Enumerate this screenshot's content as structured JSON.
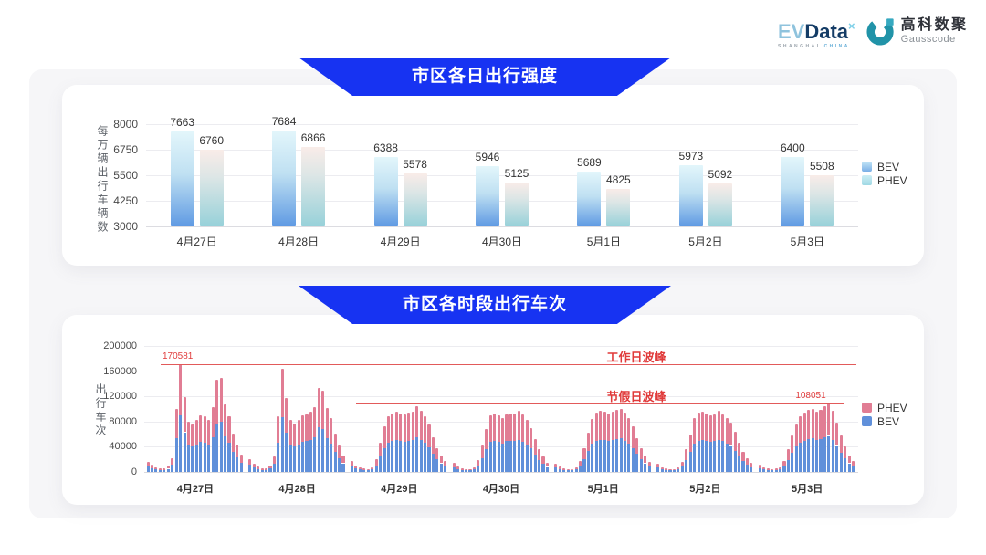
{
  "header": {
    "logo": {
      "ev": "EV",
      "data": "Data",
      "sup": "×",
      "location_left": "SHANGHAI",
      "location_right": "CHINA",
      "partner_cn": "高科数聚",
      "partner_en": "Gausscode"
    }
  },
  "colors": {
    "banner_blue": "#1733f2",
    "annotation_red": "#e03b3b",
    "annotation_line_red": "#e25a5a",
    "bev_stack_blue": "#6090da",
    "phev_stack_pink": "#e17d94",
    "bev_gradient_top": "#e3f6fb",
    "bev_gradient_bottom": "#5f9ae3",
    "phev_gradient_top": "#f9ece8",
    "phev_gradient_bottom": "#97d1d9",
    "grid": "#ececf0",
    "axis_text": "#4a4a4a"
  },
  "chart_data": [
    {
      "type": "bar",
      "title": "市区各日出行强度",
      "ylabel": "每万辆出行车辆数",
      "xlabel": "",
      "categories": [
        "4月27日",
        "4月28日",
        "4月29日",
        "4月30日",
        "5月1日",
        "5月2日",
        "5月3日"
      ],
      "series": [
        {
          "name": "BEV",
          "values": [
            7663,
            7684,
            6388,
            5946,
            5689,
            5973,
            6400
          ]
        },
        {
          "name": "PHEV",
          "values": [
            6760,
            6866,
            5578,
            5125,
            4825,
            5092,
            5508
          ]
        }
      ],
      "ylim": [
        3000,
        8000
      ],
      "yticks": [
        3000,
        4250,
        5500,
        6750,
        8000
      ],
      "grid": true,
      "legend_position": "right"
    },
    {
      "type": "bar",
      "stacked": true,
      "title": "市区各时段出行车次",
      "ylabel": "出行车次",
      "xlabel": "",
      "legend": [
        "PHEV",
        "BEV"
      ],
      "ylim": [
        0,
        200000
      ],
      "yticks": [
        0,
        40000,
        80000,
        120000,
        160000,
        200000
      ],
      "grid": true,
      "legend_position": "right",
      "bev_share": 0.53,
      "series_note": "each bar is one hour, stacked BEV (bottom, blue) + PHEV (top, pink); totals below",
      "days": [
        {
          "date": "4月27日",
          "hourly_total": [
            16000,
            11000,
            7500,
            6000,
            5500,
            9500,
            22000,
            100000,
            170581,
            119000,
            80000,
            76000,
            82000,
            90000,
            88000,
            83000,
            103000,
            146000,
            150000,
            107000,
            88000,
            61000,
            44000,
            27000
          ]
        },
        {
          "date": "4月28日",
          "hourly_total": [
            21000,
            13000,
            8500,
            6500,
            6000,
            10000,
            24000,
            88000,
            164000,
            117000,
            83000,
            77000,
            83000,
            90000,
            92000,
            95000,
            103000,
            134000,
            129000,
            102000,
            86000,
            61000,
            42000,
            26000
          ]
        },
        {
          "date": "4月29日",
          "hourly_total": [
            17000,
            10000,
            7000,
            5500,
            5000,
            8000,
            20000,
            46000,
            72000,
            88000,
            93000,
            95000,
            93000,
            91000,
            94000,
            96000,
            105000,
            97000,
            88000,
            75000,
            55000,
            38000,
            26000,
            17000
          ]
        },
        {
          "date": "4月30日",
          "hourly_total": [
            14000,
            9000,
            6000,
            5000,
            5000,
            8000,
            19000,
            42000,
            68000,
            90000,
            93000,
            90000,
            86000,
            92000,
            93000,
            93000,
            97000,
            91000,
            83000,
            70000,
            52000,
            36000,
            24000,
            15000
          ]
        },
        {
          "date": "5月1日",
          "hourly_total": [
            13000,
            8500,
            6000,
            5000,
            5000,
            7500,
            17000,
            38000,
            62000,
            84000,
            94000,
            97000,
            95000,
            93000,
            96000,
            98000,
            100000,
            94000,
            86000,
            72000,
            54000,
            38000,
            26000,
            16000
          ]
        },
        {
          "date": "5月2日",
          "hourly_total": [
            13000,
            8000,
            5500,
            5000,
            5000,
            7500,
            16000,
            36000,
            60000,
            86000,
            94000,
            95000,
            93000,
            90000,
            92000,
            97000,
            92000,
            86000,
            78000,
            64000,
            47000,
            32000,
            22000,
            14000
          ]
        },
        {
          "date": "5月3日",
          "hourly_total": [
            12000,
            8000,
            5500,
            5000,
            5500,
            8000,
            17000,
            36000,
            58000,
            76000,
            88000,
            94000,
            98000,
            100000,
            96000,
            99000,
            104000,
            108051,
            97000,
            78000,
            58000,
            40000,
            26000,
            18000
          ]
        }
      ],
      "annotations": [
        {
          "name": "工作日波峰",
          "value": 170581,
          "value_label": "170581"
        },
        {
          "name": "节假日波峰",
          "value": 108051,
          "value_label": "108051"
        }
      ]
    }
  ]
}
